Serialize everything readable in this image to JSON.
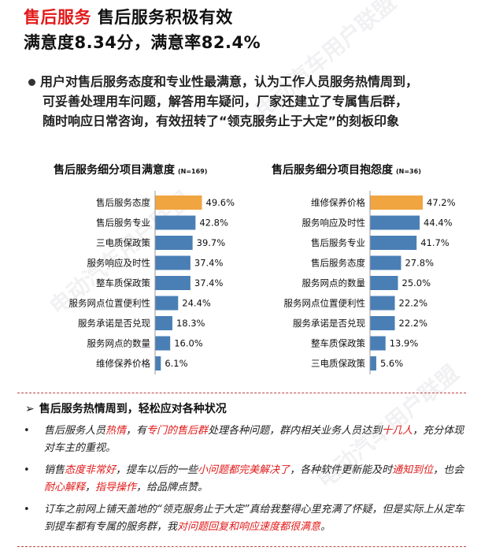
{
  "header": {
    "tag": "售后服务",
    "title": "售后服务积极有效",
    "subtitle": "满意度8.34分，满意率82.4%"
  },
  "summary_lines": [
    "用户对售后服务态度和专业性最满意，认为工作人员服务热情周到，",
    "可妥善处理用车问题，解答用车疑问，厂家还建立了专属售后群，",
    "随时响应日常咨询，有效扭转了“领克服务止于大定”的刻板印象"
  ],
  "chart_data": [
    {
      "type": "bar",
      "orientation": "horizontal",
      "title": "售后服务细分项目满意度",
      "sample": "(N=169)",
      "categories": [
        "售后服务态度",
        "售后服务专业",
        "三电质保政策",
        "服务响应及时性",
        "整车质保政策",
        "服务网点位置便利性",
        "服务承诺是否兑现",
        "服务网点的数量",
        "维修保养价格"
      ],
      "values": [
        49.6,
        42.8,
        39.7,
        37.4,
        37.4,
        24.4,
        18.3,
        16.0,
        6.1
      ],
      "labels": [
        "49.6%",
        "42.8%",
        "39.7%",
        "37.4%",
        "37.4%",
        "24.4%",
        "18.3%",
        "16.0%",
        "6.1%"
      ],
      "highlight_index": 0,
      "xlim": [
        0,
        50
      ]
    },
    {
      "type": "bar",
      "orientation": "horizontal",
      "title": "售后服务细分项目抱怨度",
      "sample": "(N=36)",
      "categories": [
        "维修保养价格",
        "服务响应及时性",
        "售后服务专业",
        "售后服务态度",
        "服务网点的数量",
        "服务网点位置便利性",
        "服务承诺是否兑现",
        "整车质保政策",
        "三电质保政策"
      ],
      "values": [
        47.2,
        44.4,
        41.7,
        27.8,
        25.0,
        22.2,
        22.2,
        13.9,
        5.6
      ],
      "labels": [
        "47.2%",
        "44.4%",
        "41.7%",
        "27.8%",
        "25.0%",
        "22.2%",
        "22.2%",
        "13.9%",
        "5.6%"
      ],
      "highlight_index": 0,
      "xlim": [
        0,
        50
      ]
    }
  ],
  "colors": {
    "bar": "#4a7fb5",
    "highlight": "#f0a540",
    "accent": "#e21a1a"
  },
  "quotes": {
    "heading": "售后服务热情周到，轻松应对各种状况",
    "bullet": "•",
    "items": [
      [
        {
          "t": "售后服务人员"
        },
        {
          "t": "热情",
          "h": true
        },
        {
          "t": "，有"
        },
        {
          "t": "专门的售后群",
          "h": true
        },
        {
          "t": "处理各种问题，群内相关业务人员达到"
        },
        {
          "t": "十几人",
          "h": true
        },
        {
          "t": "，充分体现对车主的重视。"
        }
      ],
      [
        {
          "t": "销售"
        },
        {
          "t": "态度非常好",
          "h": true
        },
        {
          "t": "，提车以后的一些"
        },
        {
          "t": "小问题都完美解决了",
          "h": true
        },
        {
          "t": "，各种软件更新能及时"
        },
        {
          "t": "通知到位",
          "h": true
        },
        {
          "t": "，也会"
        },
        {
          "t": "耐心解释",
          "h": true
        },
        {
          "t": "，"
        },
        {
          "t": "指导操作",
          "h": true
        },
        {
          "t": "，给品牌点赞。"
        }
      ],
      [
        {
          "t": "订车之前网上铺天盖地的“领克服务止于大定”真给我整得心里充满了怀疑，但是实际上从定车到提车都有专属的服务群，我"
        },
        {
          "t": "对问题回复和响应速度都很满意",
          "h": true
        },
        {
          "t": "。"
        }
      ]
    ]
  },
  "watermark": "电动汽车用户联盟"
}
